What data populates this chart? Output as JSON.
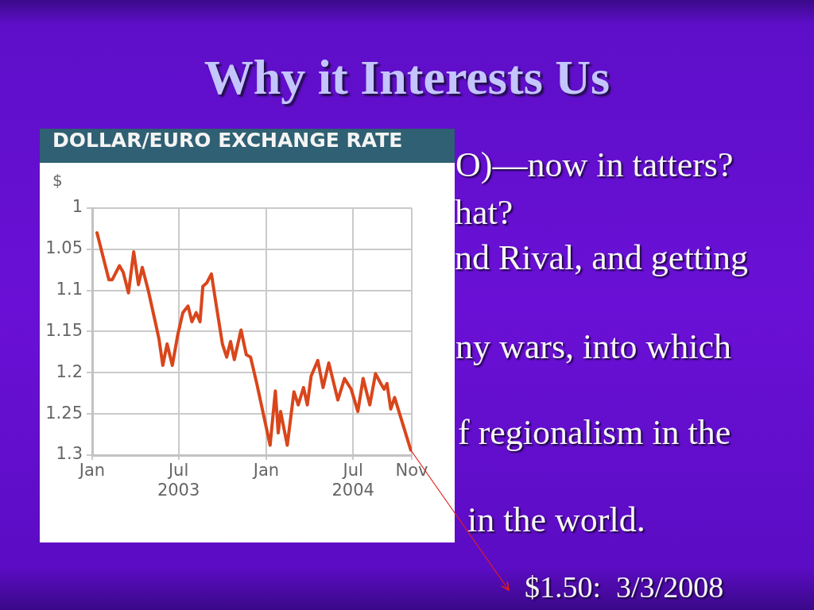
{
  "chart_data": {
    "type": "line",
    "title": "Why it Interests Us",
    "subtitle": "DOLLAR/EURO EXCHANGE RATE",
    "ylabel": "$",
    "x": [
      "2003-01-11",
      "2003-02-05",
      "2003-02-12",
      "2003-02-27",
      "2003-03-07",
      "2003-03-18",
      "2003-03-29",
      "2003-04-08",
      "2003-04-16",
      "2003-04-29",
      "2003-05-15",
      "2003-05-21",
      "2003-05-29",
      "2003-06-07",
      "2003-06-18",
      "2003-06-29",
      "2003-07-10",
      "2003-07-21",
      "2003-07-29",
      "2003-08-07",
      "2003-08-15",
      "2003-08-21",
      "2003-08-29",
      "2003-09-08",
      "2003-09-17",
      "2003-10-01",
      "2003-10-10",
      "2003-10-18",
      "2003-10-26",
      "2003-11-09",
      "2003-11-20",
      "2003-11-29",
      "2003-12-12",
      "2004-01-09",
      "2004-01-20",
      "2004-01-26",
      "2004-01-31",
      "2004-02-14",
      "2004-02-28",
      "2004-03-08",
      "2004-03-19",
      "2004-03-27",
      "2004-04-04",
      "2004-04-18",
      "2004-04-29",
      "2004-05-11",
      "2004-05-30",
      "2004-06-13",
      "2004-06-27",
      "2004-07-11",
      "2004-07-22",
      "2004-08-05",
      "2004-08-17",
      "2004-08-27",
      "2004-09-04",
      "2004-09-10",
      "2004-09-18",
      "2004-09-26",
      "2004-10-30"
    ],
    "values": [
      1.03,
      1.087,
      1.087,
      1.07,
      1.078,
      1.103,
      1.053,
      1.093,
      1.072,
      1.101,
      1.143,
      1.159,
      1.191,
      1.165,
      1.191,
      1.155,
      1.127,
      1.119,
      1.138,
      1.127,
      1.138,
      1.095,
      1.091,
      1.08,
      1.114,
      1.165,
      1.181,
      1.162,
      1.184,
      1.148,
      1.178,
      1.181,
      1.213,
      1.288,
      1.222,
      1.273,
      1.247,
      1.288,
      1.223,
      1.239,
      1.218,
      1.239,
      1.204,
      1.185,
      1.218,
      1.188,
      1.233,
      1.207,
      1.22,
      1.247,
      1.207,
      1.239,
      1.201,
      1.212,
      1.22,
      1.213,
      1.244,
      1.23,
      1.294
    ],
    "color": "#d9461b",
    "line_style": "solid",
    "xlim": [
      "2003-01-01",
      "2004-11-01"
    ],
    "xticks": [
      {
        "value": "2003-01-01",
        "label": "Jan"
      },
      {
        "value": "2003-07-01",
        "label": "Jul\n2003"
      },
      {
        "value": "2004-01-01",
        "label": "Jan"
      },
      {
        "value": "2004-07-01",
        "label": "Jul\n2004"
      },
      {
        "value": "2004-11-01",
        "label": "Nov"
      }
    ],
    "ylim": [
      1.3,
      1
    ],
    "yticks": [
      1,
      1.05,
      1.1,
      1.15,
      1.2,
      1.25,
      1.3
    ],
    "grid": true,
    "annotations": [
      "O)—now in tatters?",
      "hat?",
      "nd Rival, and getting",
      "ny wars, into which",
      "f regionalism in the",
      "in the world.",
      "$1.50:  3/3/2008"
    ]
  }
}
